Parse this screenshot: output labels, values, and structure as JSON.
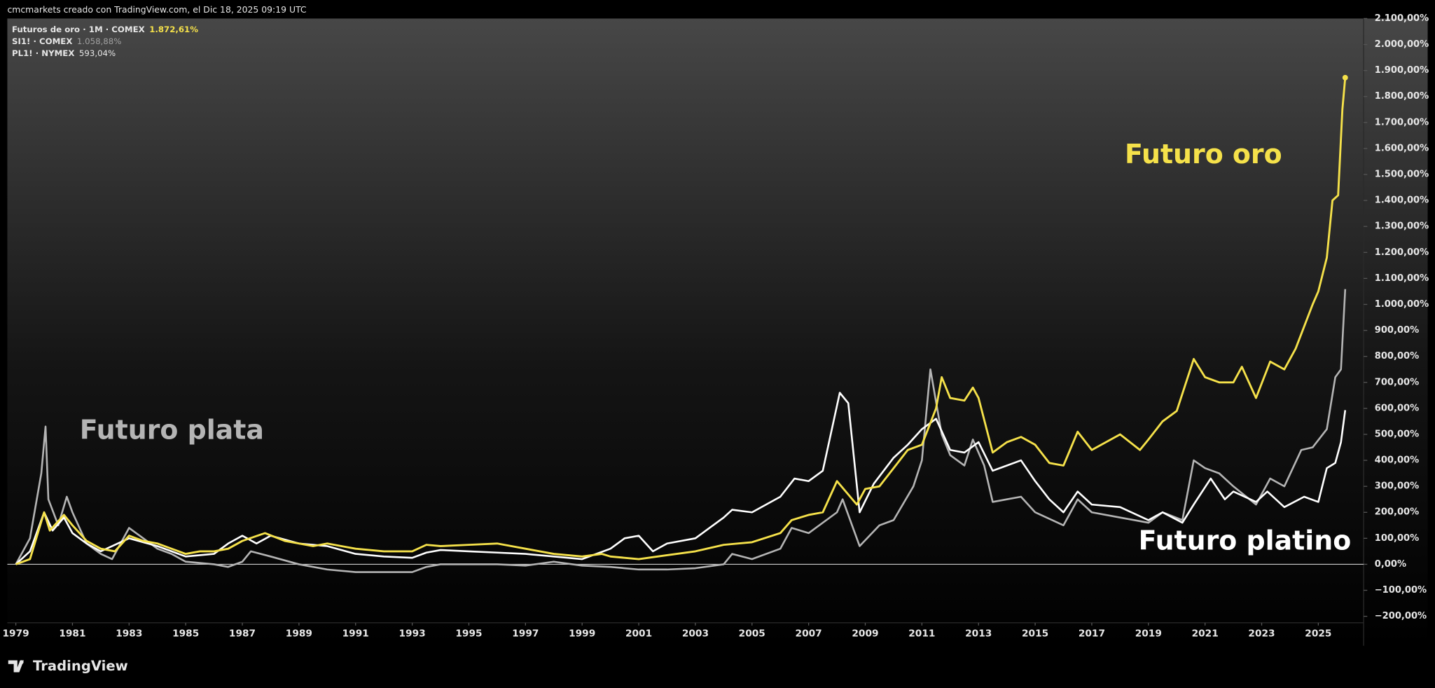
{
  "header": {
    "attribution": "cmcmarkets creado con TradingView.com, el Dic 18, 2025 09:19 UTC"
  },
  "footer": {
    "brand": "TradingView"
  },
  "chart_data": {
    "type": "line",
    "xlim": [
      1978.7,
      2026.6
    ],
    "xticks": [
      1979,
      1981,
      1983,
      1985,
      1987,
      1989,
      1991,
      1993,
      1995,
      1997,
      1999,
      2001,
      2003,
      2005,
      2007,
      2009,
      2011,
      2013,
      2015,
      2017,
      2019,
      2021,
      2023,
      2025
    ],
    "ylim": [
      -225,
      2100
    ],
    "yticks": [
      {
        "value": -200,
        "label": "−200,00%"
      },
      {
        "value": -100,
        "label": "−100,00%"
      },
      {
        "value": 0,
        "label": "0,00%"
      },
      {
        "value": 100,
        "label": "100,00%"
      },
      {
        "value": 200,
        "label": "200,00%"
      },
      {
        "value": 300,
        "label": "300,00%"
      },
      {
        "value": 400,
        "label": "400,00%"
      },
      {
        "value": 500,
        "label": "500,00%"
      },
      {
        "value": 600,
        "label": "600,00%"
      },
      {
        "value": 700,
        "label": "700,00%"
      },
      {
        "value": 800,
        "label": "800,00%"
      },
      {
        "value": 900,
        "label": "900,00%"
      },
      {
        "value": 1000,
        "label": "1.000,00%"
      },
      {
        "value": 1100,
        "label": "1.100,00%"
      },
      {
        "value": 1200,
        "label": "1.200,00%"
      },
      {
        "value": 1300,
        "label": "1.300,00%"
      },
      {
        "value": 1400,
        "label": "1.400,00%"
      },
      {
        "value": 1500,
        "label": "1.500,00%"
      },
      {
        "value": 1600,
        "label": "1.600,00%"
      },
      {
        "value": 1700,
        "label": "1.700,00%"
      },
      {
        "value": 1800,
        "label": "1.800,00%"
      },
      {
        "value": 1900,
        "label": "1.900,00%"
      },
      {
        "value": 2000,
        "label": "2.000,00%"
      },
      {
        "value": 2100,
        "label": "2.100,00%"
      }
    ],
    "annotations": [
      "Futuro oro",
      "Futuro plata",
      "Futuro platino"
    ],
    "series": [
      {
        "name": "Futuros de oro · 1M · COMEX",
        "legend_value": "1.872,61%",
        "color": "#f5e14a",
        "x": [
          1979.0,
          1979.5,
          1980.0,
          1980.2,
          1980.7,
          1981.0,
          1981.5,
          1982.0,
          1982.5,
          1983.0,
          1983.5,
          1984.0,
          1984.5,
          1985.0,
          1985.5,
          1986.0,
          1986.5,
          1987.0,
          1987.8,
          1988.5,
          1989.0,
          1989.5,
          1990.0,
          1990.5,
          1991.0,
          1992.0,
          1993.0,
          1993.5,
          1994.0,
          1995.0,
          1996.0,
          1997.0,
          1998.0,
          1999.0,
          1999.7,
          2000.0,
          2001.0,
          2002.0,
          2003.0,
          2004.0,
          2005.0,
          2006.0,
          2006.4,
          2007.0,
          2007.5,
          2008.0,
          2008.7,
          2009.0,
          2009.5,
          2010.0,
          2010.5,
          2011.0,
          2011.5,
          2011.7,
          2012.0,
          2012.5,
          2012.8,
          2013.0,
          2013.5,
          2014.0,
          2014.5,
          2015.0,
          2015.5,
          2016.0,
          2016.5,
          2017.0,
          2017.5,
          2018.0,
          2018.7,
          2019.0,
          2019.5,
          2020.0,
          2020.6,
          2021.0,
          2021.5,
          2022.0,
          2022.3,
          2022.8,
          2023.3,
          2023.8,
          2024.2,
          2024.8,
          2025.0,
          2025.3,
          2025.5,
          2025.7,
          2025.85,
          2025.95
        ],
        "values": [
          0,
          20,
          200,
          130,
          190,
          150,
          90,
          60,
          50,
          110,
          90,
          80,
          60,
          40,
          50,
          50,
          60,
          90,
          120,
          90,
          80,
          70,
          80,
          70,
          60,
          50,
          50,
          75,
          70,
          75,
          80,
          60,
          40,
          30,
          40,
          30,
          20,
          35,
          50,
          75,
          85,
          120,
          170,
          190,
          200,
          320,
          230,
          290,
          300,
          370,
          440,
          460,
          600,
          720,
          640,
          630,
          680,
          640,
          430,
          470,
          490,
          460,
          390,
          380,
          510,
          440,
          470,
          500,
          440,
          480,
          550,
          590,
          790,
          720,
          700,
          700,
          760,
          640,
          780,
          750,
          830,
          1000,
          1050,
          1180,
          1400,
          1420,
          1750,
          1872.61
        ]
      },
      {
        "name": "SI1! · COMEX",
        "legend_value": "1.058,88%",
        "color": "#b4b4b4",
        "x": [
          1979.0,
          1979.5,
          1979.9,
          1980.05,
          1980.15,
          1980.5,
          1980.8,
          1981.0,
          1981.5,
          1982.0,
          1982.4,
          1983.0,
          1983.5,
          1984.0,
          1984.5,
          1985.0,
          1986.0,
          1986.5,
          1987.0,
          1987.3,
          1988.0,
          1989.0,
          1990.0,
          1991.0,
          1992.0,
          1993.0,
          1993.5,
          1994.0,
          1995.0,
          1996.0,
          1997.0,
          1998.0,
          1999.0,
          2000.0,
          2001.0,
          2002.0,
          2003.0,
          2004.0,
          2004.3,
          2005.0,
          2006.0,
          2006.4,
          2007.0,
          2008.0,
          2008.2,
          2008.8,
          2009.5,
          2010.0,
          2010.7,
          2011.0,
          2011.3,
          2011.7,
          2012.0,
          2012.5,
          2012.8,
          2013.2,
          2013.5,
          2014.0,
          2014.5,
          2015.0,
          2016.0,
          2016.5,
          2017.0,
          2018.0,
          2019.0,
          2019.5,
          2020.2,
          2020.6,
          2021.0,
          2021.5,
          2022.0,
          2022.8,
          2023.3,
          2023.8,
          2024.4,
          2024.8,
          2025.3,
          2025.6,
          2025.8,
          2025.95
        ],
        "values": [
          0,
          100,
          350,
          530,
          250,
          150,
          260,
          200,
          80,
          40,
          20,
          140,
          100,
          60,
          40,
          10,
          0,
          -10,
          10,
          50,
          30,
          0,
          -20,
          -30,
          -30,
          -30,
          -10,
          0,
          0,
          0,
          -5,
          10,
          -5,
          -10,
          -20,
          -20,
          -15,
          0,
          40,
          20,
          60,
          140,
          120,
          200,
          250,
          70,
          150,
          170,
          300,
          400,
          750,
          500,
          420,
          380,
          480,
          380,
          240,
          250,
          260,
          200,
          150,
          250,
          200,
          180,
          160,
          200,
          170,
          400,
          370,
          350,
          300,
          230,
          330,
          300,
          440,
          450,
          520,
          720,
          750,
          1058.88
        ]
      },
      {
        "name": "PL1! · NYMEX",
        "legend_value": "593,04%",
        "color": "#ffffff",
        "x": [
          1979.0,
          1979.5,
          1980.0,
          1980.3,
          1980.7,
          1981.0,
          1981.5,
          1982.0,
          1983.0,
          1984.0,
          1984.5,
          1985.0,
          1986.0,
          1986.5,
          1987.0,
          1987.5,
          1988.0,
          1989.0,
          1990.0,
          1991.0,
          1992.0,
          1993.0,
          1993.5,
          1994.0,
          1995.0,
          1996.0,
          1997.0,
          1998.0,
          1999.0,
          2000.0,
          2000.5,
          2001.0,
          2001.5,
          2002.0,
          2003.0,
          2004.0,
          2004.3,
          2005.0,
          2006.0,
          2006.5,
          2007.0,
          2007.5,
          2008.1,
          2008.4,
          2008.8,
          2009.3,
          2010.0,
          2010.5,
          2011.0,
          2011.5,
          2012.0,
          2012.5,
          2013.0,
          2013.5,
          2014.0,
          2014.5,
          2015.0,
          2015.5,
          2016.0,
          2016.5,
          2017.0,
          2018.0,
          2019.0,
          2019.5,
          2020.2,
          2020.6,
          2021.2,
          2021.7,
          2022.0,
          2022.8,
          2023.2,
          2023.8,
          2024.5,
          2025.0,
          2025.3,
          2025.6,
          2025.8,
          2025.95
        ],
        "values": [
          0,
          50,
          200,
          130,
          180,
          120,
          80,
          50,
          100,
          70,
          50,
          30,
          40,
          80,
          110,
          80,
          110,
          80,
          70,
          40,
          30,
          25,
          45,
          55,
          50,
          45,
          40,
          30,
          20,
          60,
          100,
          110,
          50,
          80,
          100,
          180,
          210,
          200,
          260,
          330,
          320,
          360,
          660,
          620,
          200,
          310,
          410,
          460,
          520,
          560,
          440,
          430,
          470,
          360,
          380,
          400,
          320,
          250,
          200,
          280,
          230,
          220,
          170,
          200,
          160,
          230,
          330,
          250,
          280,
          240,
          280,
          220,
          260,
          240,
          370,
          390,
          470,
          593.04
        ]
      }
    ]
  }
}
